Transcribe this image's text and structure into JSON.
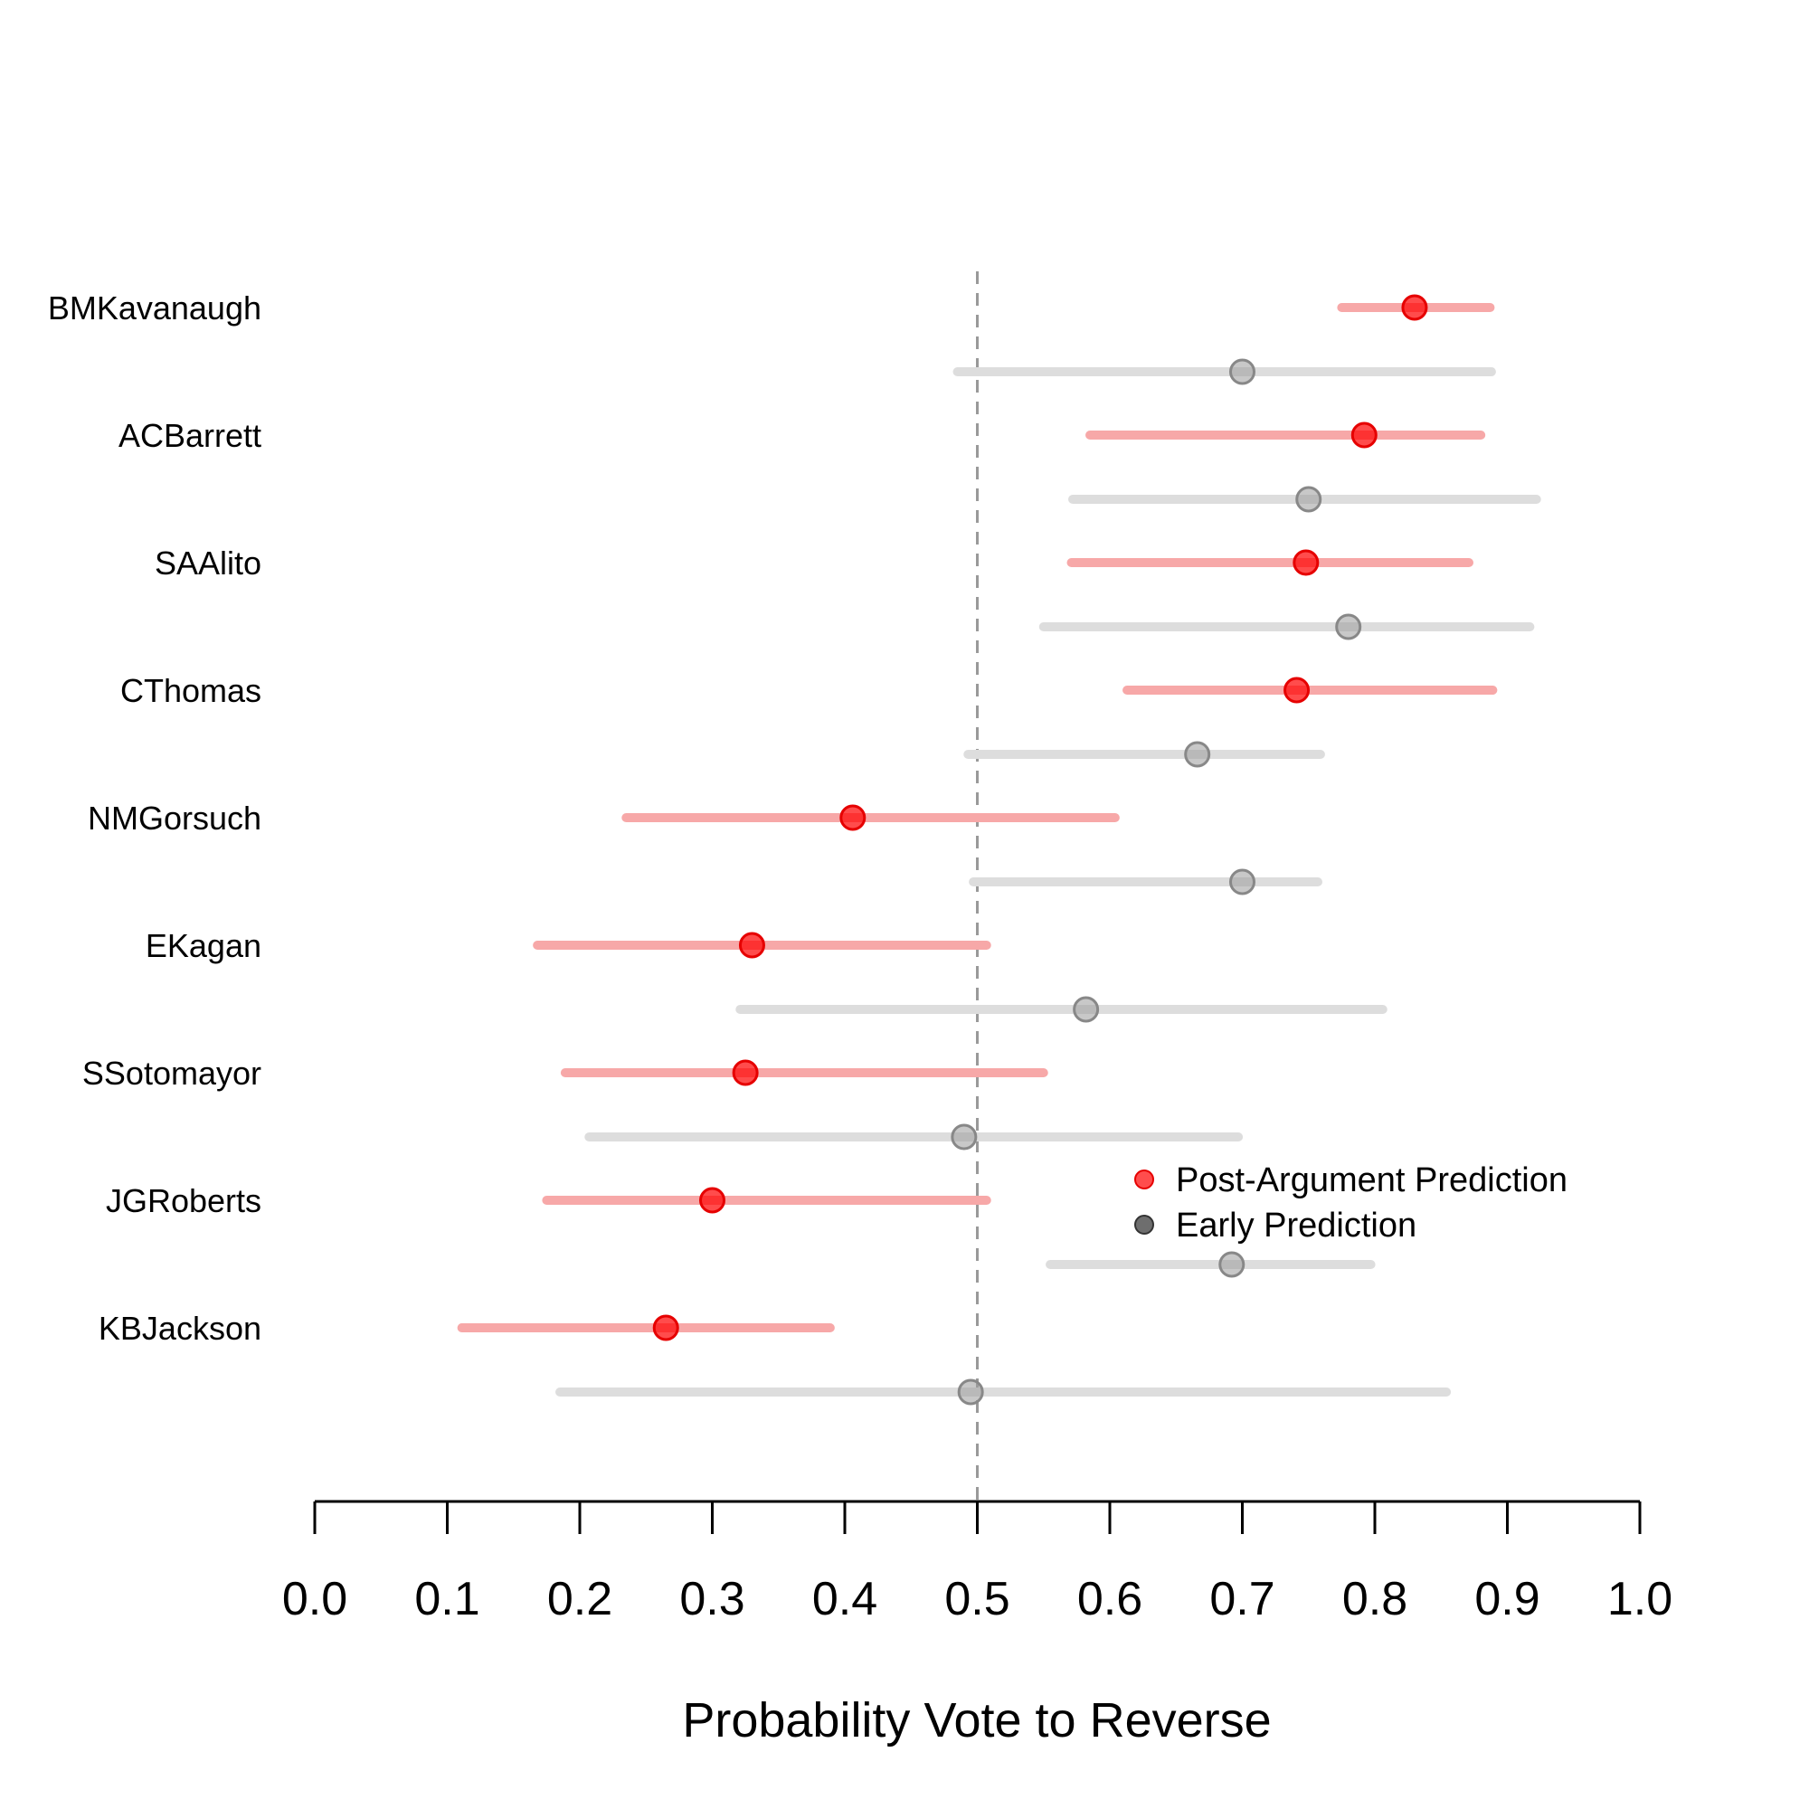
{
  "chart_data": {
    "type": "forest",
    "xlabel": "Probability Vote to Reverse",
    "xlim": [
      0.0,
      1.0
    ],
    "xticks": [
      "0.0",
      "0.1",
      "0.2",
      "0.3",
      "0.4",
      "0.5",
      "0.6",
      "0.7",
      "0.8",
      "0.9",
      "1.0"
    ],
    "reference_line": 0.5,
    "legend": {
      "position": "lower-right",
      "entries": [
        {
          "name": "Post-Argument Prediction",
          "color": "#ff0000"
        },
        {
          "name": "Early Prediction",
          "color": "#000000"
        }
      ]
    },
    "colors": {
      "post_point": "#ff0000",
      "post_interval": "#f7a8a8",
      "early_point": "#9a9a9a",
      "early_interval": "#dddddd",
      "reference_line": "#999999"
    },
    "justices": [
      {
        "name": "BMKavanaugh",
        "post": {
          "estimate": 0.83,
          "low": 0.775,
          "high": 0.887
        },
        "early": {
          "estimate": 0.7,
          "low": 0.485,
          "high": 0.888
        }
      },
      {
        "name": "ACBarrett",
        "post": {
          "estimate": 0.792,
          "low": 0.585,
          "high": 0.88
        },
        "early": {
          "estimate": 0.75,
          "low": 0.572,
          "high": 0.922
        }
      },
      {
        "name": "SAAlito",
        "post": {
          "estimate": 0.748,
          "low": 0.571,
          "high": 0.871
        },
        "early": {
          "estimate": 0.78,
          "low": 0.55,
          "high": 0.917
        }
      },
      {
        "name": "CThomas",
        "post": {
          "estimate": 0.741,
          "low": 0.613,
          "high": 0.889
        },
        "early": {
          "estimate": 0.666,
          "low": 0.493,
          "high": 0.759
        }
      },
      {
        "name": "NMGorsuch",
        "post": {
          "estimate": 0.406,
          "low": 0.235,
          "high": 0.604
        },
        "early": {
          "estimate": 0.7,
          "low": 0.497,
          "high": 0.757
        }
      },
      {
        "name": "EKagan",
        "post": {
          "estimate": 0.33,
          "low": 0.168,
          "high": 0.507
        },
        "early": {
          "estimate": 0.582,
          "low": 0.321,
          "high": 0.806
        }
      },
      {
        "name": "SSotomayor",
        "post": {
          "estimate": 0.325,
          "low": 0.189,
          "high": 0.55
        },
        "early": {
          "estimate": 0.49,
          "low": 0.207,
          "high": 0.697
        }
      },
      {
        "name": "JGRoberts",
        "post": {
          "estimate": 0.3,
          "low": 0.175,
          "high": 0.507
        },
        "early": {
          "estimate": 0.692,
          "low": 0.555,
          "high": 0.797
        }
      },
      {
        "name": "KBJackson",
        "post": {
          "estimate": 0.265,
          "low": 0.111,
          "high": 0.389
        },
        "early": {
          "estimate": 0.495,
          "low": 0.185,
          "high": 0.854
        }
      }
    ]
  }
}
